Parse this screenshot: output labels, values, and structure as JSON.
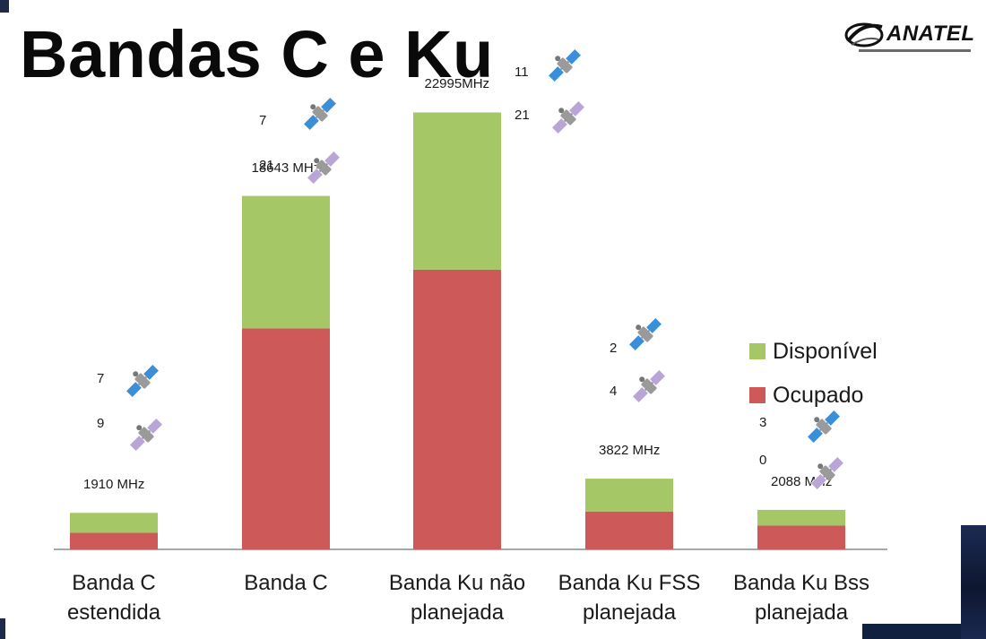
{
  "title": "Bandas C e Ku",
  "logo": {
    "text": "ANATEL"
  },
  "colors": {
    "available": "#a6c766",
    "occupied": "#cd5a58",
    "axis": "#8c8c8c",
    "sat_active": "#3a8fd8",
    "sat_inactive": "#b9a5d6"
  },
  "chart_data": {
    "type": "bar",
    "stacked": true,
    "categories": [
      "Banda C estendida",
      "Banda C",
      "Banda Ku não planejada",
      "Banda Ku FSS planejada",
      "Banda Ku Bss planejada"
    ],
    "category_lines": [
      [
        "Banda C",
        "estendida"
      ],
      [
        "Banda C",
        ""
      ],
      [
        "Banda Ku não",
        "planejada"
      ],
      [
        "Banda Ku FSS",
        "planejada"
      ],
      [
        "Banda Ku Bss",
        "planejada"
      ]
    ],
    "series": [
      {
        "name": "Ocupado",
        "values": [
          720,
          9560,
          12100,
          1640,
          1030
        ]
      },
      {
        "name": "Disponível",
        "values": [
          860,
          5730,
          6800,
          1420,
          680
        ]
      }
    ],
    "ylim": [
      0,
      19500
    ],
    "bar_labels": [
      "1910 MHz",
      "18643 MHz",
      "22995MHz",
      "3822 MHz",
      "2088 MHz"
    ],
    "satellite_counts": [
      {
        "blue": "7",
        "purple": "9"
      },
      {
        "blue": "7",
        "purple": "21"
      },
      {
        "blue": "11",
        "purple": "21"
      },
      {
        "blue": "2",
        "purple": "4"
      },
      {
        "blue": "3",
        "purple": "0"
      }
    ],
    "legend": [
      "Disponível",
      "Ocupado"
    ],
    "legend_position": "right"
  }
}
